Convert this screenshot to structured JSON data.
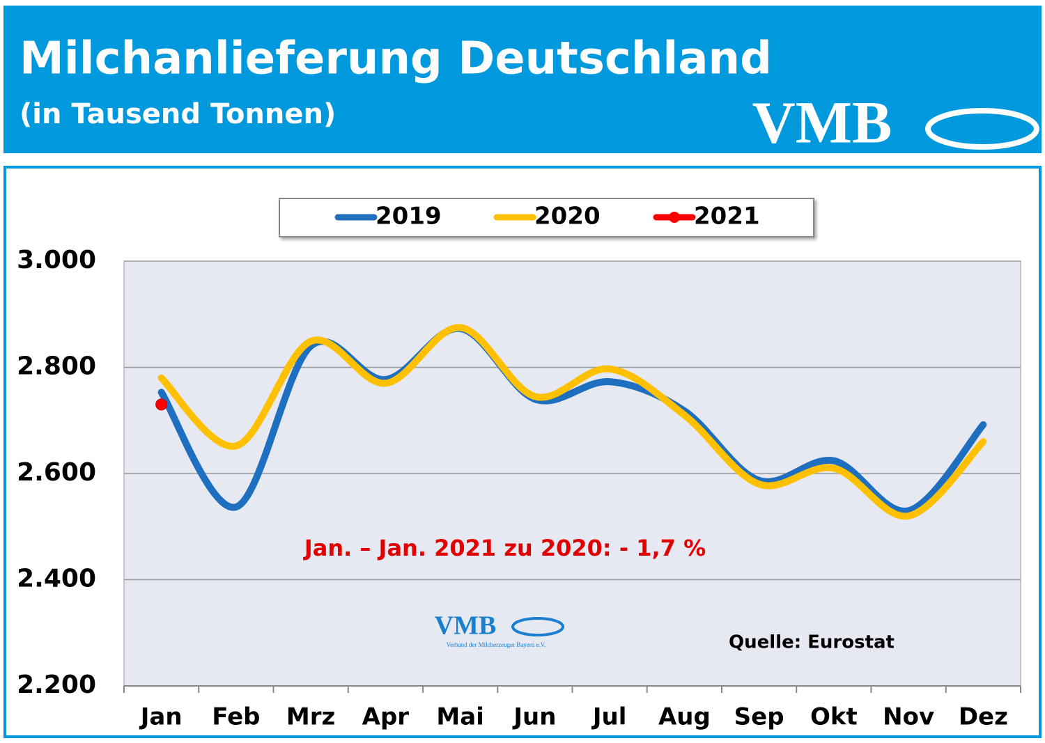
{
  "chart_data": {
    "type": "line",
    "title": "Milchanlieferung Deutschland",
    "subtitle": "(in Tausend Tonnen)",
    "logo": "VMB",
    "logo_subtitle": "Verband der Milcherzeuger Bayern e.V.",
    "annotation": "Jan. – Jan. 2021 zu 2020: - 1,7 %",
    "source": "Quelle: Eurostat",
    "categories": [
      "Jan",
      "Feb",
      "Mrz",
      "Apr",
      "Mai",
      "Jun",
      "Jul",
      "Aug",
      "Sep",
      "Okt",
      "Nov",
      "Dez"
    ],
    "series": [
      {
        "name": "2019",
        "color": "#1f6fc1",
        "values": [
          2753,
          2537,
          2840,
          2777,
          2873,
          2740,
          2773,
          2718,
          2587,
          2624,
          2530,
          2692
        ]
      },
      {
        "name": "2020",
        "color": "#ffc000",
        "values": [
          2780,
          2652,
          2849,
          2770,
          2875,
          2745,
          2797,
          2710,
          2580,
          2610,
          2520,
          2660
        ]
      },
      {
        "name": "2021",
        "color": "#ff0000",
        "marker": "circle",
        "values": [
          2730,
          null,
          null,
          null,
          null,
          null,
          null,
          null,
          null,
          null,
          null,
          null
        ]
      }
    ],
    "ylim": [
      2200,
      3000
    ],
    "yticks": [
      {
        "value": 2200,
        "label": "2.200"
      },
      {
        "value": 2400,
        "label": "2.400"
      },
      {
        "value": 2600,
        "label": "2.600"
      },
      {
        "value": 2800,
        "label": "2.800"
      },
      {
        "value": 3000,
        "label": "3.000"
      }
    ],
    "grid": true,
    "legend": "top"
  }
}
